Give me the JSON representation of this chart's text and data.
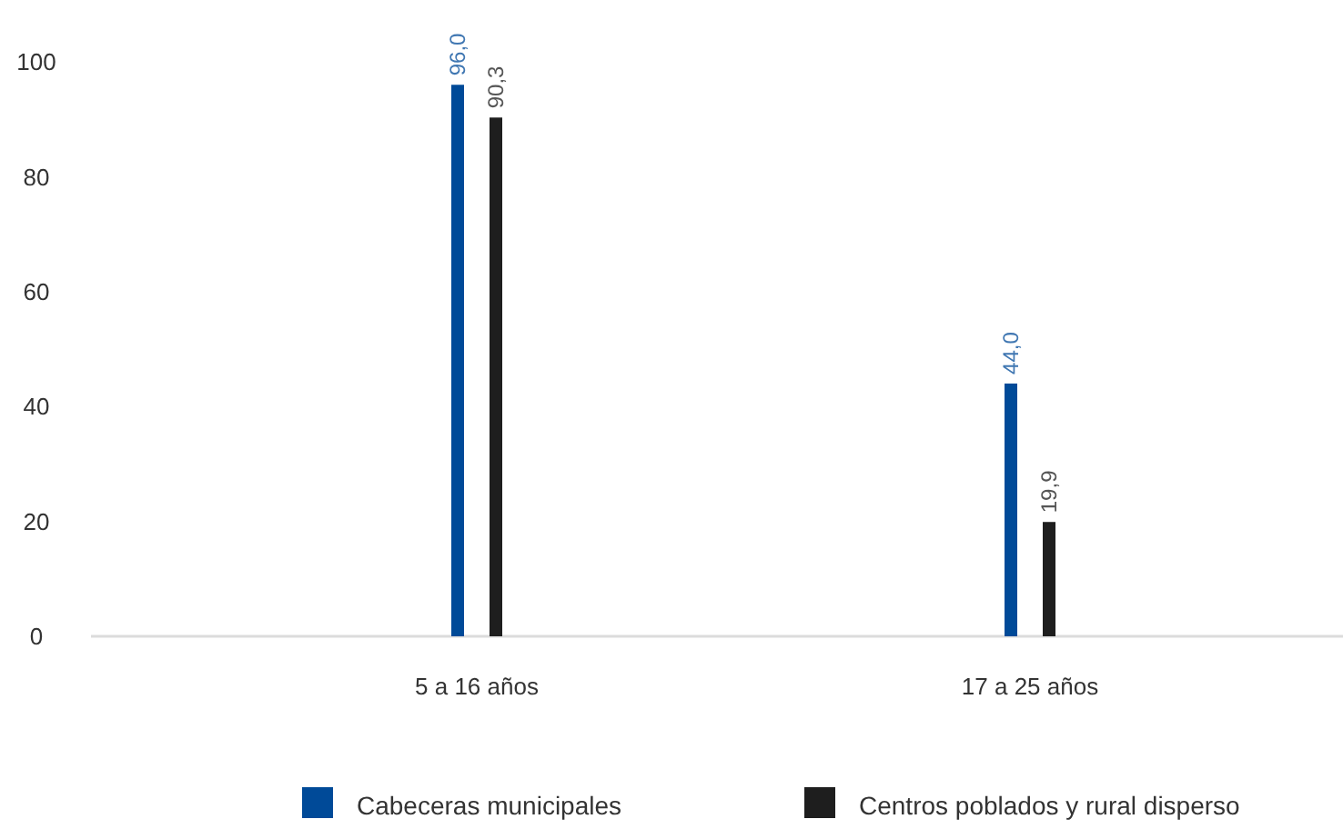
{
  "chart_data": {
    "type": "bar",
    "categories": [
      "5 a 16 años",
      "17 a 25 años"
    ],
    "series": [
      {
        "name": "Cabeceras municipales",
        "color": "#004a98",
        "values": [
          96.0,
          44.0
        ],
        "value_labels": [
          "96,0",
          "44,0"
        ]
      },
      {
        "name": "Centros poblados y rural disperso",
        "color": "#1e1e1e",
        "values": [
          90.3,
          19.9
        ],
        "value_labels": [
          "90,3",
          "19,9"
        ]
      }
    ],
    "ylim": [
      0,
      100
    ],
    "yticks": [
      0,
      20,
      40,
      60,
      80,
      100
    ],
    "grid": false,
    "legend": "bottom"
  }
}
